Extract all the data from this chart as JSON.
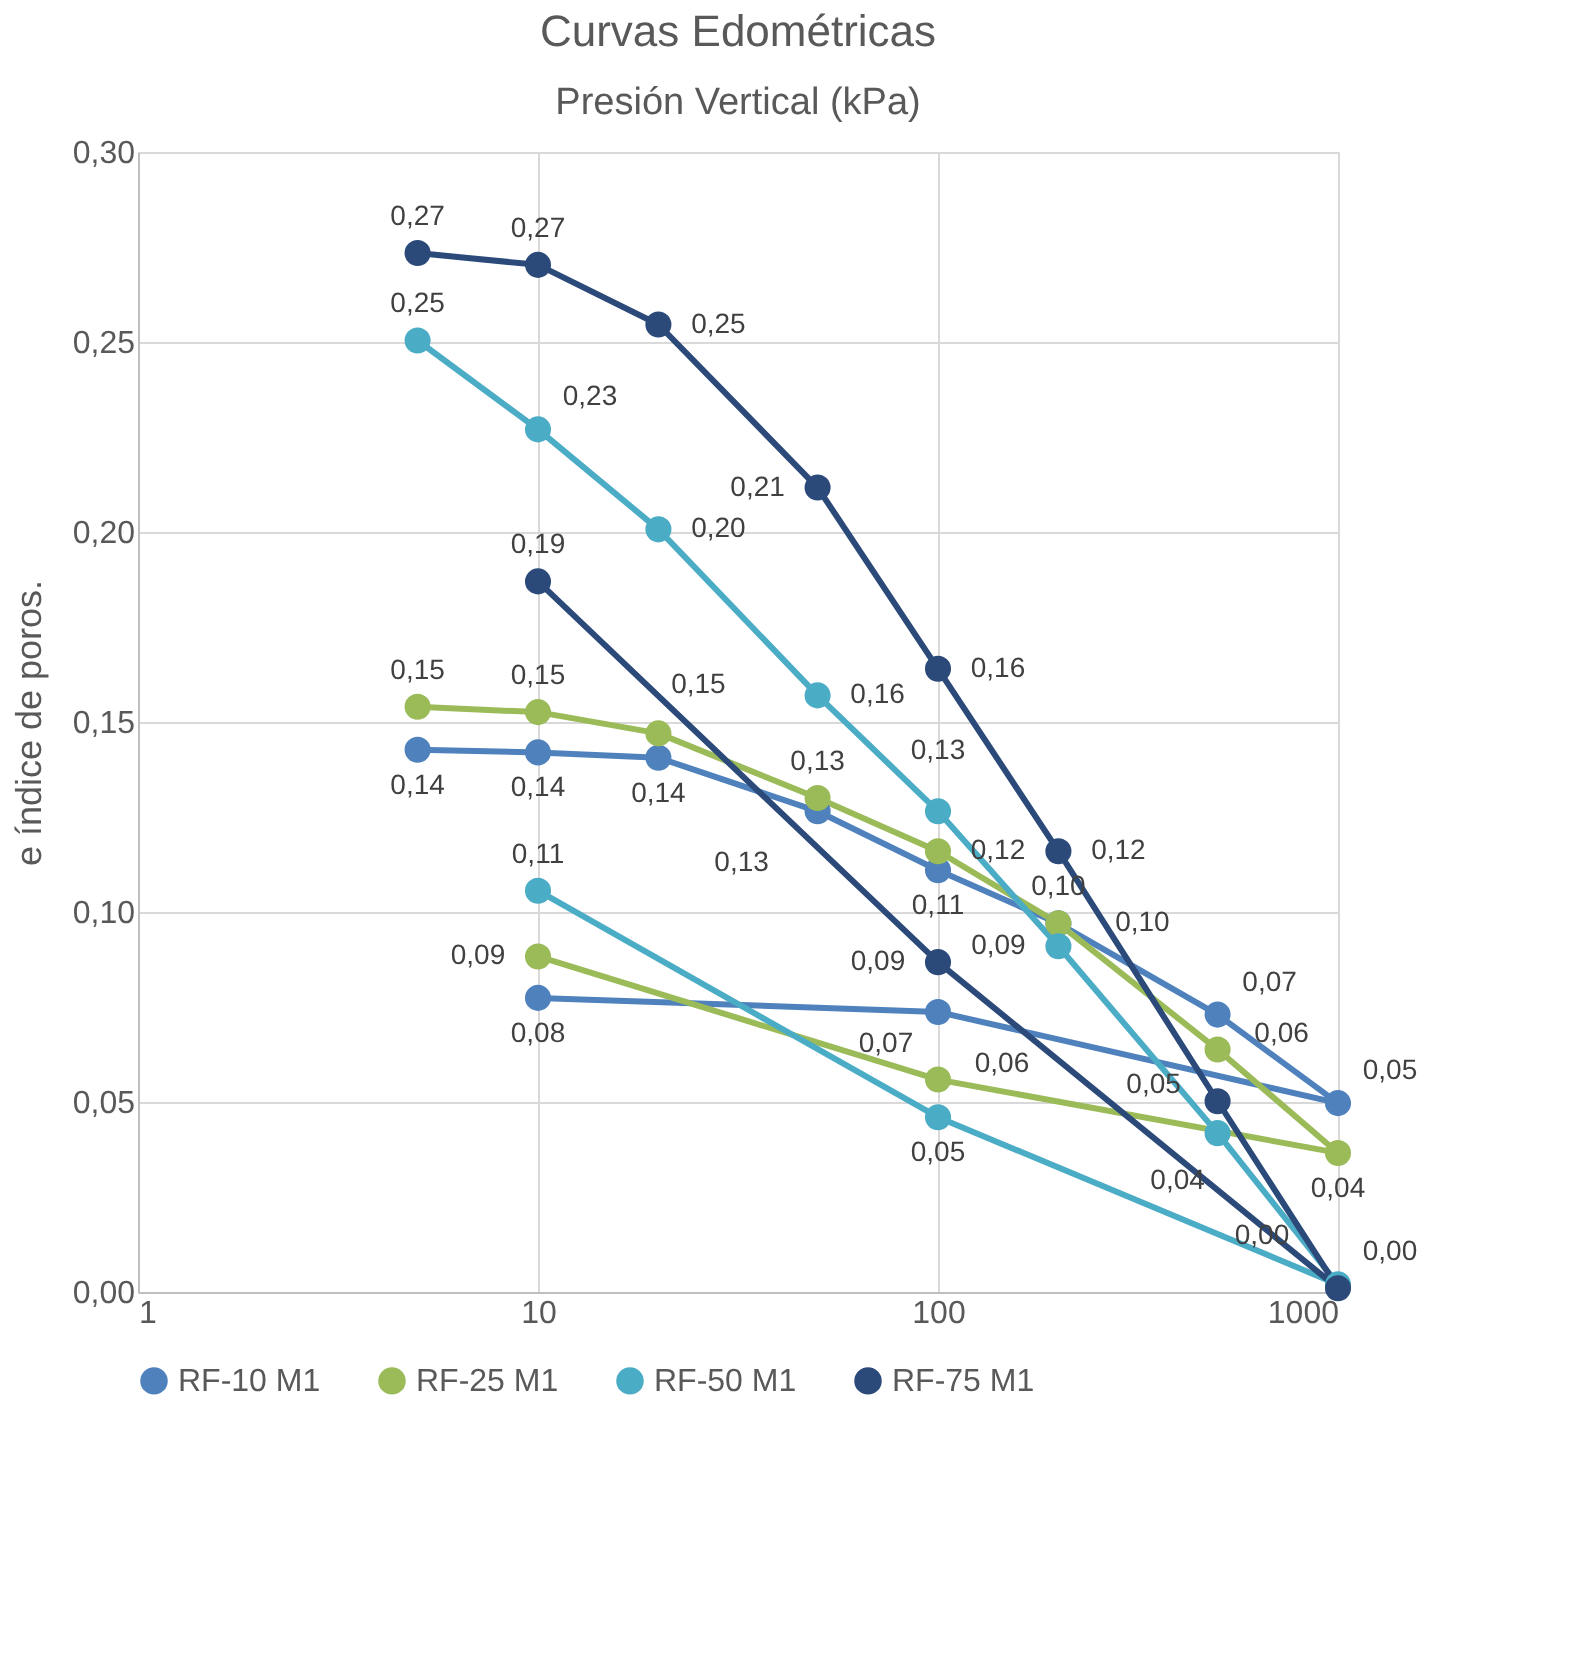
{
  "chart_data": {
    "type": "line",
    "title": "Curvas Edométricas",
    "xlabel": "Presión Vertical (kPa)",
    "ylabel": "e índice de poros.",
    "x": [
      5,
      10,
      20,
      50,
      100,
      200,
      500,
      1000,
      100,
      10
    ],
    "log": "x",
    "xlim": [
      1,
      1000
    ],
    "xticks": [
      1,
      10,
      100,
      1000
    ],
    "ylim": [
      0,
      0.3
    ],
    "yticks": [
      {
        "value": 0,
        "label": "0,00"
      },
      {
        "value": 0.05,
        "label": "0,05"
      },
      {
        "value": 0.1,
        "label": "0,10"
      },
      {
        "value": 0.15,
        "label": "0,15"
      },
      {
        "value": 0.2,
        "label": "0,20"
      },
      {
        "value": 0.25,
        "label": "0,25"
      },
      {
        "value": 0.3,
        "label": "0,30"
      }
    ],
    "grid": true,
    "legend": "bottom",
    "marker": "circle",
    "line_style": "solid",
    "series": [
      {
        "name": "RF-10 M1",
        "color": "#4f81bd",
        "values": [
          0.1427,
          0.142,
          0.1406,
          0.1265,
          0.111,
          0.097,
          0.073,
          0.0497,
          0.0737,
          0.0774
        ],
        "value_labels": [
          "0,14",
          "0,14",
          "0,14",
          "0,13",
          "0,11",
          "0,10",
          "0,07",
          "0,05",
          "0,07",
          "0,08"
        ]
      },
      {
        "name": "RF-25 M1",
        "color": "#9bbb59",
        "values": [
          0.154,
          0.1526,
          0.147,
          0.13,
          0.116,
          0.097,
          0.0638,
          0.0366,
          0.0559,
          0.0883
        ],
        "value_labels": [
          "0,15",
          "0,15",
          "0,15",
          "0,13",
          "0,12",
          "0,10",
          "0,06",
          "0,04",
          "0,06",
          "0,09"
        ]
      },
      {
        "name": "RF-50 M1",
        "color": "#4bacc6",
        "values": [
          0.2504,
          0.227,
          0.2007,
          0.157,
          0.1265,
          0.091,
          0.0418,
          0.002,
          0.046,
          0.1056
        ],
        "value_labels": [
          "0,25",
          "0,23",
          "0,20",
          "0,16",
          "0,13",
          "0,09",
          "0,04",
          "0,00",
          "0,05",
          "0,11"
        ]
      },
      {
        "name": "RF-75 M1",
        "color": "#2b4a7a",
        "values": [
          0.2734,
          0.2703,
          0.2546,
          0.2117,
          0.164,
          0.116,
          0.0502,
          0.001,
          0.0868,
          0.187
        ],
        "value_labels": [
          "0,27",
          "0,27",
          "0,25",
          "0,21",
          "0,16",
          "0,12",
          "0,05",
          "0,00",
          "0,09",
          "0,19"
        ]
      }
    ]
  }
}
